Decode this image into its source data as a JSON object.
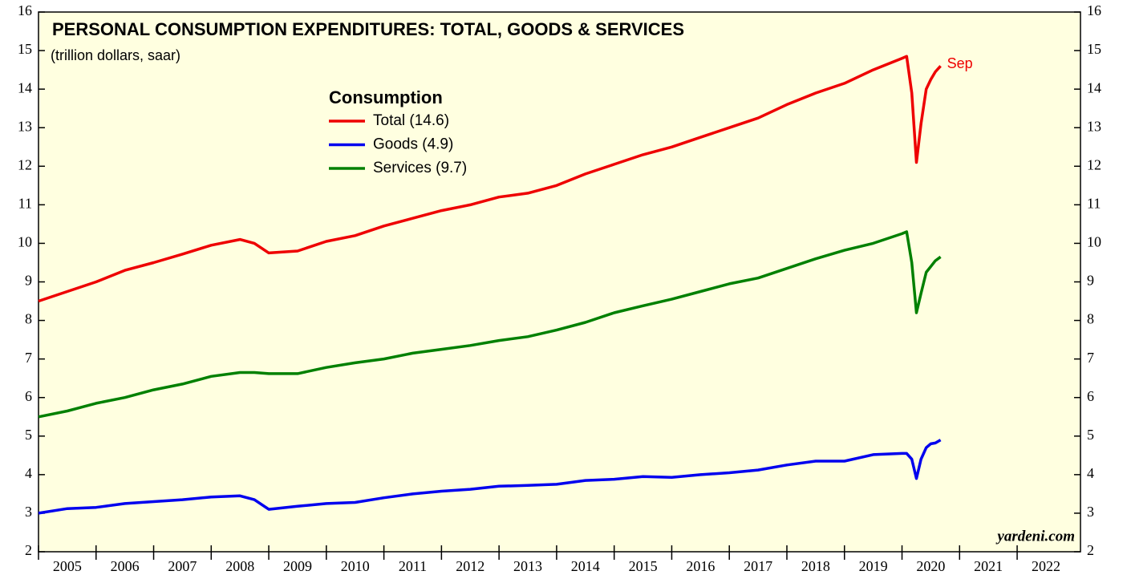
{
  "chart_data": {
    "type": "line",
    "title": "PERSONAL CONSUMPTION EXPENDITURES: TOTAL, GOODS & SERVICES",
    "subtitle": "(trillion dollars, saar)",
    "legend_title": "Consumption",
    "annotation": "Sep",
    "source": "yardeni.com",
    "x": [
      2005.0,
      2005.5,
      2006.0,
      2006.5,
      2007.0,
      2007.5,
      2008.0,
      2008.5,
      2008.75,
      2009.0,
      2009.5,
      2010.0,
      2010.5,
      2011.0,
      2011.5,
      2012.0,
      2012.5,
      2013.0,
      2013.5,
      2014.0,
      2014.5,
      2015.0,
      2015.5,
      2016.0,
      2016.5,
      2017.0,
      2017.5,
      2018.0,
      2018.5,
      2019.0,
      2019.5,
      2020.0,
      2020.08,
      2020.17,
      2020.25,
      2020.33,
      2020.42,
      2020.5,
      2020.58,
      2020.67
    ],
    "series": [
      {
        "name": "Total (14.6)",
        "color": "#ee0000",
        "values": [
          8.5,
          8.75,
          9.0,
          9.3,
          9.5,
          9.72,
          9.95,
          10.1,
          10.0,
          9.75,
          9.8,
          10.05,
          10.2,
          10.45,
          10.65,
          10.85,
          11.0,
          11.2,
          11.3,
          11.5,
          11.8,
          12.05,
          12.3,
          12.5,
          12.75,
          13.0,
          13.25,
          13.6,
          13.9,
          14.15,
          14.5,
          14.8,
          14.85,
          13.9,
          12.1,
          13.1,
          14.0,
          14.25,
          14.45,
          14.6
        ]
      },
      {
        "name": "Goods (4.9)",
        "color": "#0000ee",
        "values": [
          3.0,
          3.12,
          3.15,
          3.25,
          3.3,
          3.35,
          3.42,
          3.45,
          3.35,
          3.1,
          3.18,
          3.25,
          3.28,
          3.4,
          3.5,
          3.57,
          3.62,
          3.7,
          3.72,
          3.75,
          3.85,
          3.88,
          3.95,
          3.93,
          4.0,
          4.05,
          4.12,
          4.25,
          4.35,
          4.35,
          4.52,
          4.55,
          4.55,
          4.4,
          3.9,
          4.4,
          4.7,
          4.8,
          4.82,
          4.9
        ]
      },
      {
        "name": "Services (9.7)",
        "color": "#008000",
        "values": [
          5.5,
          5.65,
          5.85,
          6.0,
          6.2,
          6.35,
          6.55,
          6.65,
          6.65,
          6.62,
          6.62,
          6.78,
          6.9,
          7.0,
          7.15,
          7.25,
          7.35,
          7.48,
          7.58,
          7.75,
          7.95,
          8.2,
          8.38,
          8.55,
          8.75,
          8.95,
          9.1,
          9.35,
          9.6,
          9.82,
          10.0,
          10.25,
          10.3,
          9.5,
          8.2,
          8.7,
          9.25,
          9.4,
          9.55,
          9.65
        ]
      }
    ],
    "xlim": [
      2005,
      2023.1
    ],
    "xticks": [
      2005,
      2006,
      2007,
      2008,
      2009,
      2010,
      2011,
      2012,
      2013,
      2014,
      2015,
      2016,
      2017,
      2018,
      2019,
      2020,
      2021,
      2022
    ],
    "ylim": [
      2,
      16
    ],
    "yticks": [
      2,
      3,
      4,
      5,
      6,
      7,
      8,
      9,
      10,
      11,
      12,
      13,
      14,
      15,
      16
    ],
    "background": "#ffffe0"
  }
}
